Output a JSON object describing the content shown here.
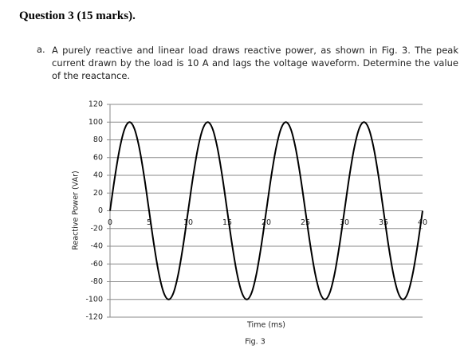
{
  "question": {
    "title": "Question 3 (15 marks).",
    "part": "a.",
    "text": "A purely reactive and linear load draws reactive power, as shown in Fig. 3. The peak current drawn by the load is 10 A and lags the voltage waveform. Determine the value of the reactance."
  },
  "chart_data": {
    "type": "line",
    "x_label": "Time (ms)",
    "y_label": "Reactive Power (VAr)",
    "caption": "Fig. 3",
    "color": "#000000",
    "grid": true,
    "xlim": [
      0,
      40
    ],
    "xticks": [
      0,
      5,
      10,
      15,
      20,
      25,
      30,
      35,
      40
    ],
    "ylim": [
      -120,
      120
    ],
    "yticks": [
      120,
      100,
      80,
      60,
      40,
      20,
      0,
      -20,
      -40,
      -60,
      -80,
      -100,
      -120
    ],
    "x": [
      0,
      0.625,
      1.25,
      1.875,
      2.5,
      3.125,
      3.75,
      4.375,
      5,
      5.625,
      6.25,
      6.875,
      7.5,
      8.125,
      8.75,
      9.375,
      10,
      10.625,
      11.25,
      11.875,
      12.5,
      13.125,
      13.75,
      14.375,
      15,
      15.625,
      16.25,
      16.875,
      17.5,
      18.125,
      18.75,
      19.375,
      20,
      20.625,
      21.25,
      21.875,
      22.5,
      23.125,
      23.75,
      24.375,
      25,
      25.625,
      26.25,
      26.875,
      27.5,
      28.125,
      28.75,
      29.375,
      30,
      30.625,
      31.25,
      31.875,
      32.5,
      33.125,
      33.75,
      34.375,
      35,
      35.625,
      36.25,
      36.875,
      37.5,
      38.125,
      38.75,
      39.375,
      40
    ],
    "values": [
      0,
      38.3,
      70.7,
      92.4,
      100,
      92.4,
      70.7,
      38.3,
      0,
      -38.3,
      -70.7,
      -92.4,
      -100,
      -92.4,
      -70.7,
      -38.3,
      0,
      38.3,
      70.7,
      92.4,
      100,
      92.4,
      70.7,
      38.3,
      0,
      -38.3,
      -70.7,
      -92.4,
      -100,
      -92.4,
      -70.7,
      -38.3,
      0,
      38.3,
      70.7,
      92.4,
      100,
      92.4,
      70.7,
      38.3,
      0,
      -38.3,
      -70.7,
      -92.4,
      -100,
      -92.4,
      -70.7,
      -38.3,
      0,
      38.3,
      70.7,
      92.4,
      100,
      92.4,
      70.7,
      38.3,
      0,
      -38.3,
      -70.7,
      -92.4,
      -100,
      -92.4,
      -70.7,
      -38.3,
      0
    ]
  }
}
